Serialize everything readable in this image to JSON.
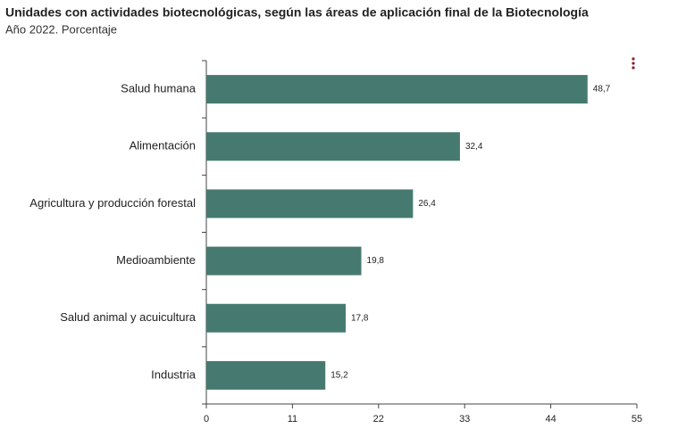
{
  "chart_data": {
    "type": "bar",
    "orientation": "horizontal",
    "title": "Unidades con actividades biotecnológicas, según las áreas de aplicación final de la Biotecnología",
    "subtitle": "Año 2022. Porcentaje",
    "categories": [
      "Salud humana",
      "Alimentación",
      "Agricultura y producción forestal",
      "Medioambiente",
      "Salud animal y acuicultura",
      "Industria"
    ],
    "values": [
      48.7,
      32.4,
      26.4,
      19.8,
      17.8,
      15.2
    ],
    "value_labels": [
      "48,7",
      "32,4",
      "26,4",
      "19,8",
      "17,8",
      "15,2"
    ],
    "color": "#467a70",
    "xlim": [
      0,
      55
    ],
    "xticks": [
      0,
      11,
      22,
      33,
      44,
      55
    ]
  }
}
